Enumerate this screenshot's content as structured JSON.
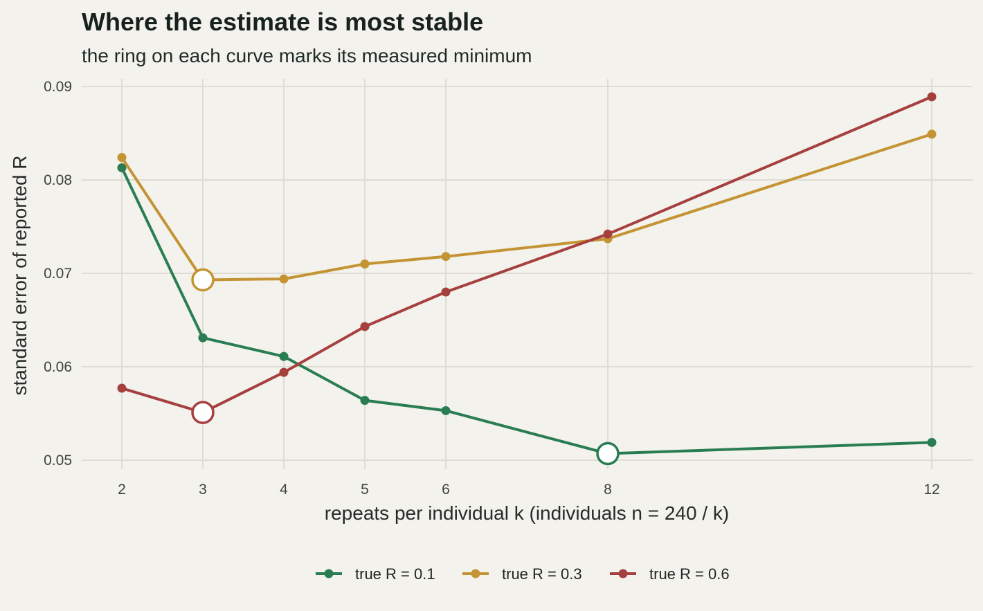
{
  "chart_data": {
    "type": "line",
    "title": "Where the estimate is most stable",
    "subtitle": "the ring on each curve marks its measured minimum",
    "xlabel": "repeats per individual k (individuals n = 240 / k)",
    "ylabel": "standard error of reported R",
    "x": [
      2,
      3,
      4,
      5,
      6,
      8,
      12
    ],
    "xlim": [
      1.5,
      12.5
    ],
    "ylim": [
      0.0478,
      0.0915
    ],
    "x_ticks": [
      "2",
      "3",
      "4",
      "5",
      "6",
      "8",
      "12"
    ],
    "y_ticks": [
      "0.05",
      "0.06",
      "0.07",
      "0.08",
      "0.09"
    ],
    "grid": true,
    "legend_position": "bottom",
    "series": [
      {
        "name": "true R = 0.1",
        "color": "#2a7d52",
        "values": [
          0.0813,
          0.0631,
          0.0611,
          0.0564,
          0.0553,
          0.0507,
          0.0519
        ],
        "minimum_x": 8
      },
      {
        "name": "true R = 0.3",
        "color": "#c49434",
        "values": [
          0.0824,
          0.0693,
          0.0694,
          0.071,
          0.0718,
          0.0737,
          0.0849
        ],
        "minimum_x": 3
      },
      {
        "name": "true R = 0.6",
        "color": "#a5403f",
        "values": [
          0.0577,
          0.0551,
          0.0594,
          0.0643,
          0.068,
          0.0742,
          0.0889
        ],
        "minimum_x": 3
      }
    ]
  }
}
